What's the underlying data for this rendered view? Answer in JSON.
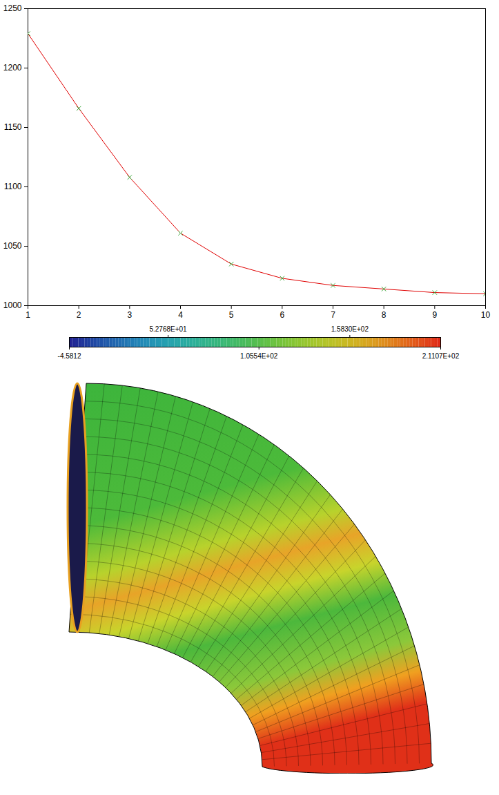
{
  "chart_data": [
    {
      "type": "line",
      "x": [
        1,
        2,
        3,
        4,
        5,
        6,
        7,
        8,
        9,
        10
      ],
      "values": [
        1229,
        1166,
        1108,
        1061,
        1035,
        1023,
        1017,
        1014,
        1011,
        1010
      ],
      "color": "#e00000",
      "marker": "x",
      "xlim": [
        1,
        10
      ],
      "xticks": [
        1,
        2,
        3,
        4,
        5,
        6,
        7,
        8,
        9,
        10
      ],
      "ylim": [
        1000,
        1250
      ],
      "yticks": [
        1000,
        1050,
        1100,
        1150,
        1200,
        1250
      ]
    },
    {
      "type": "mesh",
      "colorbar": {
        "range": [
          -4.5812,
          211.07
        ],
        "ticks": [
          {
            "value": -4.5812,
            "label": "-4.5812"
          },
          {
            "value": 52.768,
            "label": "5.2768E+01"
          },
          {
            "value": 105.54,
            "label": "1.0554E+02"
          },
          {
            "value": 158.3,
            "label": "1.5830E+02"
          },
          {
            "value": 211.07,
            "label": "2.1107E+02"
          }
        ]
      }
    }
  ]
}
